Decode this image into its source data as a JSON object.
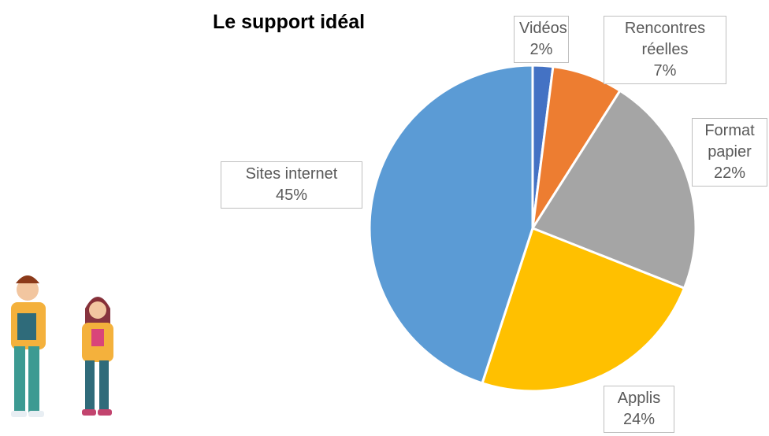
{
  "chart_data": {
    "type": "pie",
    "title": "Le support idéal",
    "categories": [
      "Vidéos",
      "Rencontres réelles",
      "Format papier",
      "Applis",
      "Sites internet"
    ],
    "values": [
      2,
      7,
      22,
      24,
      45
    ],
    "value_labels": [
      "2%",
      "7%",
      "22%",
      "24%",
      "45%"
    ],
    "colors": [
      "#4472c4",
      "#ed7d31",
      "#a5a5a5",
      "#ffc000",
      "#5b9bd5"
    ]
  }
}
